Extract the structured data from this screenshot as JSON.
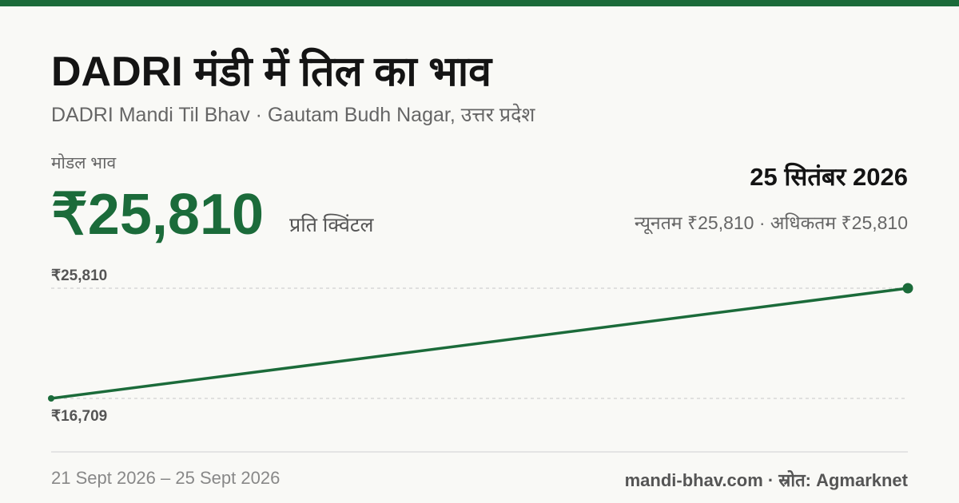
{
  "header": {
    "title": "DADRI मंडी में तिल का भाव",
    "subtitle": "DADRI Mandi Til Bhav · Gautam Budh Nagar, उत्तर प्रदेश"
  },
  "summary": {
    "label": "मोडल भाव",
    "price": "₹25,810",
    "unit": "प्रति क्विंटल",
    "date": "25 सितंबर 2026",
    "range": "न्यूनतम ₹25,810 · अधिकतम ₹25,810"
  },
  "footer": {
    "separator": "–",
    "source": "mandi-bhav.com · स्रोत: Agmarknet"
  },
  "chart_data": {
    "type": "line",
    "categories": [
      "21 Sept 2026",
      "25 Sept 2026"
    ],
    "values": [
      16709,
      25810
    ],
    "color": "#1b6b3a",
    "ylim": [
      16709,
      25810
    ],
    "yticks": [
      {
        "value": 16709,
        "label": "₹16,709"
      },
      {
        "value": 25810,
        "label": "₹25,810"
      }
    ],
    "grid": true
  }
}
